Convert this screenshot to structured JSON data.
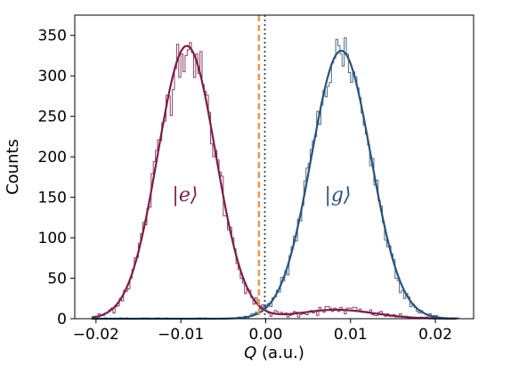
{
  "chart_data": {
    "type": "histogram",
    "xlabel": "Q (a.u.)",
    "ylabel": "Counts",
    "xlim": [
      -0.0225,
      0.0245
    ],
    "ylim": [
      0,
      375
    ],
    "xticks": [
      -0.02,
      -0.01,
      0.0,
      0.01,
      0.02
    ],
    "xtick_labels": [
      "−0.02",
      "−0.01",
      "0.00",
      "0.01",
      "0.02"
    ],
    "yticks": [
      0,
      50,
      100,
      150,
      200,
      250,
      300,
      350
    ],
    "ytick_labels": [
      "0",
      "50",
      "100",
      "150",
      "200",
      "250",
      "300",
      "350"
    ],
    "grid": false,
    "series": [
      {
        "name": "|e⟩",
        "color": "#7a1f4a",
        "fit_components": [
          {
            "mu": -0.0093,
            "sigma": 0.0034,
            "amplitude": 337
          },
          {
            "mu": 0.0083,
            "sigma": 0.0045,
            "amplitude": 11
          }
        ]
      },
      {
        "name": "|g⟩",
        "color": "#2b5279",
        "fit_components": [
          {
            "mu": 0.0089,
            "sigma": 0.0035,
            "amplitude": 331
          }
        ]
      }
    ],
    "annotations": [
      {
        "text": "|e⟩",
        "x": -0.0095,
        "y": 145,
        "color": "#7a1f4a"
      },
      {
        "text": "|g⟩",
        "x": 0.0085,
        "y": 145,
        "color": "#2b5279"
      }
    ],
    "threshold_lines": [
      {
        "x": -0.0008,
        "style": "dashed",
        "color": "#f0924c"
      },
      {
        "x": -0.0001,
        "style": "dotted",
        "color": "#2f4f5f"
      }
    ]
  }
}
